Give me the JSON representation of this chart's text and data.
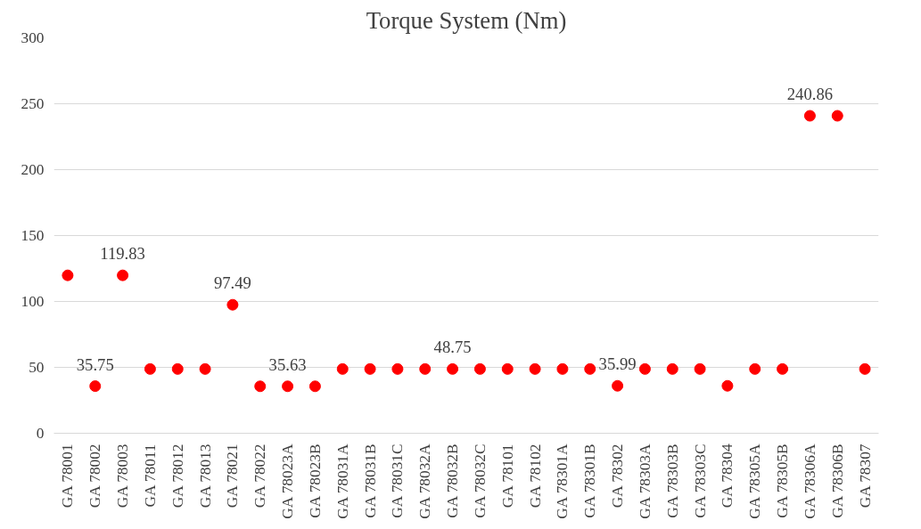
{
  "chart_data": {
    "type": "scatter",
    "title": "Torque System (Nm)",
    "categories": [
      "GA 78001",
      "GA 78002",
      "GA 78003",
      "GA 78011",
      "GA 78012",
      "GA 78013",
      "GA 78021",
      "GA 78022",
      "GA 78023A",
      "GA 78023B",
      "GA 78031A",
      "GA 78031B",
      "GA 78031C",
      "GA 78032A",
      "GA 78032B",
      "GA 78032C",
      "GA 78101",
      "GA 78102",
      "GA 78301A",
      "GA 78301B",
      "GA 78302",
      "GA 78303A",
      "GA 78303B",
      "GA 78303C",
      "GA 78304",
      "GA 78305A",
      "GA 78305B",
      "GA 78306A",
      "GA 78306B",
      "GA 78307"
    ],
    "series": [
      {
        "color": "#ff0000",
        "values": [
          119.83,
          35.75,
          119.83,
          48.75,
          48.75,
          48.75,
          97.49,
          35.63,
          35.63,
          35.63,
          48.75,
          48.75,
          48.75,
          48.75,
          48.75,
          48.75,
          48.75,
          48.75,
          48.75,
          48.75,
          35.99,
          48.75,
          48.75,
          48.75,
          35.99,
          48.75,
          48.75,
          240.86,
          240.86,
          48.75
        ],
        "value_labels": [
          null,
          "35.75",
          "119.83",
          null,
          null,
          null,
          "97.49",
          null,
          "35.63",
          null,
          null,
          null,
          null,
          null,
          "48.75",
          null,
          null,
          null,
          null,
          null,
          "35.99",
          null,
          null,
          null,
          null,
          null,
          null,
          "240.86",
          null,
          null
        ]
      }
    ],
    "ylim": [
      0,
      300
    ],
    "yticks": [
      0,
      50,
      100,
      150,
      200,
      250,
      300
    ],
    "grid": "y",
    "marker": "circle"
  }
}
